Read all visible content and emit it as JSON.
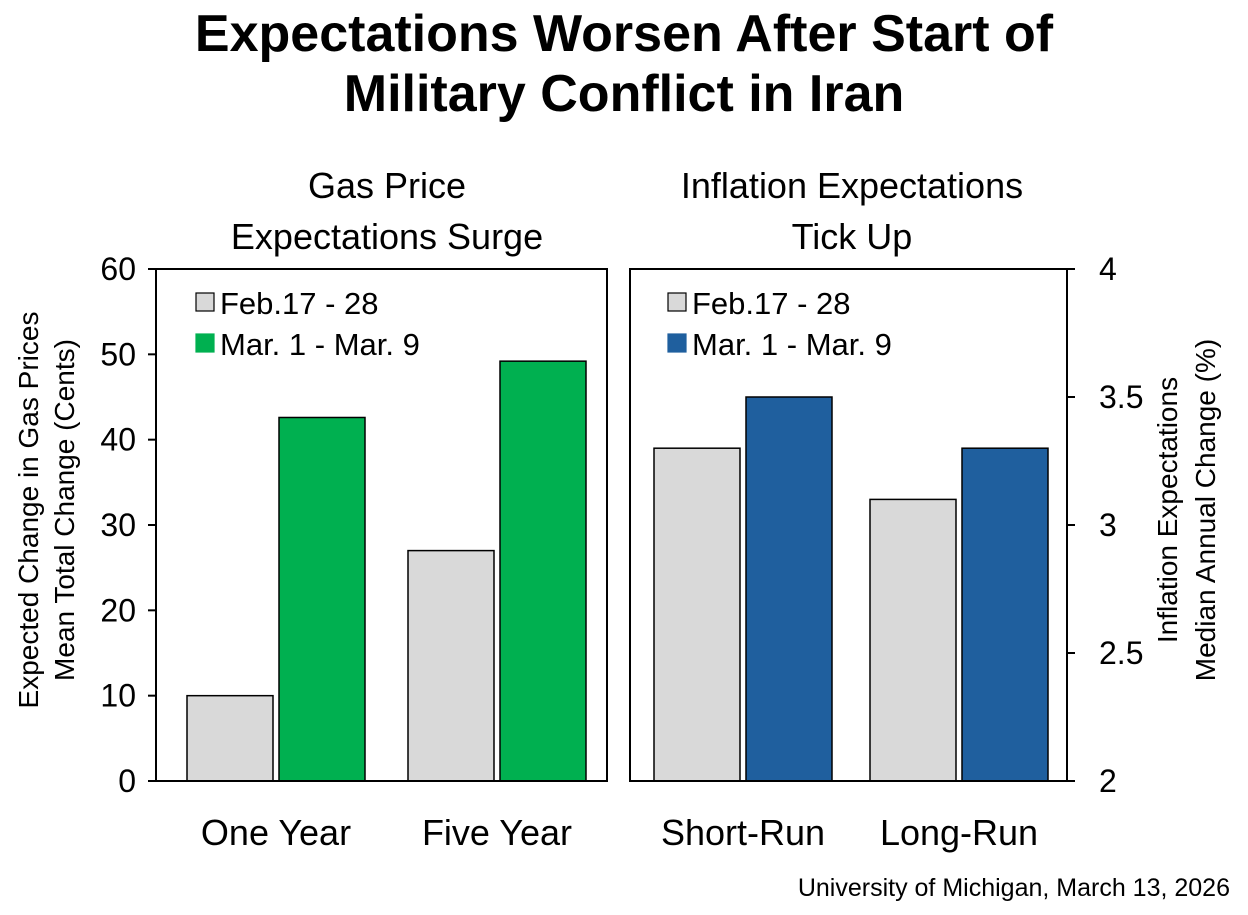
{
  "title_line1": "Expectations Worsen After Start of",
  "title_line2": "Military Conflict in Iran",
  "source": "University of Michigan, March 13, 2026",
  "chart_data": [
    {
      "type": "bar",
      "title": [
        "Gas Price",
        "Expectations Surge"
      ],
      "categories": [
        "One Year",
        "Five Year"
      ],
      "series": [
        {
          "name": "Feb.17 - 28",
          "values": [
            10,
            27
          ],
          "color": "#d9d9d9"
        },
        {
          "name": "Mar. 1 - Mar. 9",
          "values": [
            42.6,
            49.2
          ],
          "color": "#00b050"
        }
      ],
      "ylabel": [
        "Expected Change in Gas Prices",
        "Mean Total Change (Cents)"
      ],
      "ylim": [
        0,
        60
      ],
      "yticks": [
        "0",
        "10",
        "20",
        "30",
        "40",
        "50",
        "60"
      ],
      "legend": "top-left",
      "grid": false
    },
    {
      "type": "bar",
      "title": [
        "Inflation Expectations",
        "Tick Up"
      ],
      "categories": [
        "Short-Run",
        "Long-Run"
      ],
      "series": [
        {
          "name": "Feb.17 - 28",
          "values": [
            3.3,
            3.1
          ],
          "color": "#d9d9d9"
        },
        {
          "name": "Mar. 1 - Mar. 9",
          "values": [
            3.5,
            3.3
          ],
          "color": "#1f5f9e"
        }
      ],
      "ylabel": [
        "Inflation Expectations",
        "Median Annual Change (%)"
      ],
      "ylim": [
        2,
        4
      ],
      "yticks": [
        "2",
        "2.5",
        "3",
        "3.5",
        "4"
      ],
      "legend": "top-left",
      "grid": false
    }
  ]
}
